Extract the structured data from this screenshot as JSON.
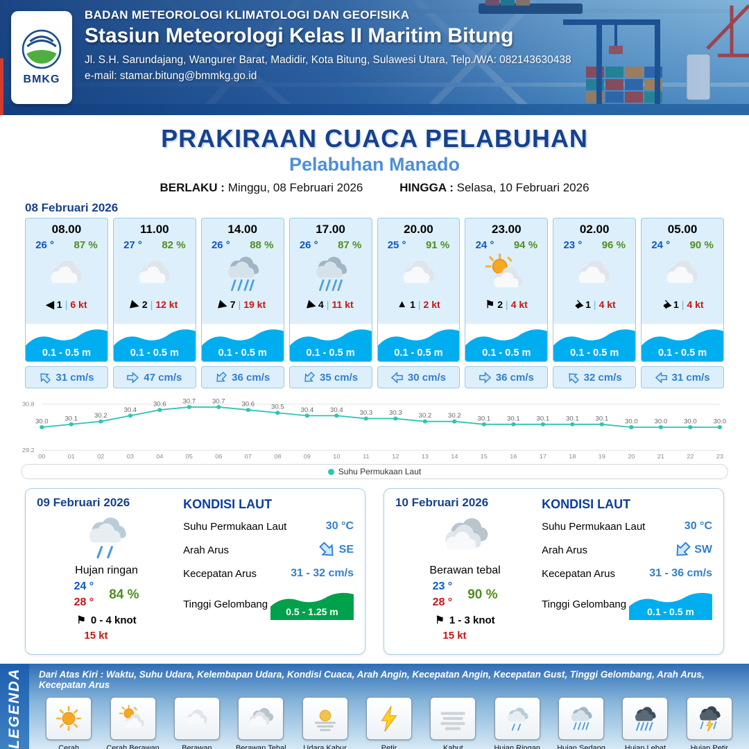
{
  "header": {
    "org": "BADAN METEOROLOGI KLIMATOLOGI DAN GEOFISIKA",
    "station": "Stasiun Meteorologi Kelas II Maritim Bitung",
    "address": "Jl. S.H. Sarundajang, Wangurer Barat, Madidir, Kota Bitung, Sulawesi Utara, Telp./WA: 082143630438",
    "email": "e-mail: stamar.bitung@bmmkg.go.id",
    "logo_text": "BMKG"
  },
  "title": {
    "main": "PRAKIRAAN CUACA PELABUHAN",
    "sub": "Pelabuhan Manado",
    "valid_from_label": "BERLAKU :",
    "valid_from": "Minggu, 08 Februari 2026",
    "valid_to_label": "HINGGA :",
    "valid_to": "Selasa, 10 Februari 2026"
  },
  "forecast": {
    "date": "08 Februari 2026",
    "cards": [
      {
        "time": "08.00",
        "temp": "26 °",
        "rh": "87 %",
        "icon": "berawan",
        "wind_glyph": "◀",
        "wind_rot": 0,
        "wind_val": "1",
        "wind_speed": "6 kt",
        "wave": "0.1 - 0.5 m",
        "current": "31 cm/s",
        "current_rot": -45
      },
      {
        "time": "11.00",
        "temp": "27 °",
        "rh": "82 %",
        "icon": "berawan",
        "wind_glyph": "▶",
        "wind_rot": 15,
        "wind_val": "2",
        "wind_speed": "12 kt",
        "wave": "0.1 - 0.5 m",
        "current": "47 cm/s",
        "current_rot": 90
      },
      {
        "time": "14.00",
        "temp": "26 °",
        "rh": "88 %",
        "icon": "hujan-sedang",
        "wind_glyph": "▶",
        "wind_rot": 15,
        "wind_val": "7",
        "wind_speed": "19 kt",
        "wave": "0.1 - 0.5 m",
        "current": "36 cm/s",
        "current_rot": 225
      },
      {
        "time": "17.00",
        "temp": "26 °",
        "rh": "87 %",
        "icon": "hujan-sedang",
        "wind_glyph": "▶",
        "wind_rot": 15,
        "wind_val": "4",
        "wind_speed": "11 kt",
        "wave": "0.1 - 0.5 m",
        "current": "35 cm/s",
        "current_rot": 225
      },
      {
        "time": "20.00",
        "temp": "25 °",
        "rh": "91 %",
        "icon": "berawan",
        "wind_glyph": "▲",
        "wind_rot": 0,
        "wind_val": "1",
        "wind_speed": "2 kt",
        "wave": "0.1 - 0.5 m",
        "current": "30 cm/s",
        "current_rot": 270
      },
      {
        "time": "23.00",
        "temp": "24 °",
        "rh": "94 %",
        "icon": "cerah-berawan",
        "wind_glyph": "⚑",
        "wind_rot": 0,
        "wind_val": "2",
        "wind_speed": "4 kt",
        "wave": "0.1 - 0.5 m",
        "current": "36 cm/s",
        "current_rot": 90
      },
      {
        "time": "02.00",
        "temp": "23 °",
        "rh": "96 %",
        "icon": "berawan",
        "wind_glyph": "⚑",
        "wind_rot": 135,
        "wind_val": "1",
        "wind_speed": "4 kt",
        "wave": "0.1 - 0.5 m",
        "current": "32 cm/s",
        "current_rot": -45
      },
      {
        "time": "05.00",
        "temp": "24 °",
        "rh": "90 %",
        "icon": "berawan",
        "wind_glyph": "⚑",
        "wind_rot": 135,
        "wind_val": "1",
        "wind_speed": "4 kt",
        "wave": "0.1 - 0.5 m",
        "current": "31 cm/s",
        "current_rot": 270
      }
    ]
  },
  "chart_data": {
    "type": "line",
    "title": "",
    "legend": "Suhu Permukaan Laut",
    "legend_position": "bottom",
    "line_color": "#2fc5b5",
    "x": [
      "00",
      "01",
      "02",
      "03",
      "04",
      "05",
      "06",
      "07",
      "08",
      "09",
      "10",
      "11",
      "12",
      "13",
      "14",
      "15",
      "16",
      "17",
      "18",
      "19",
      "20",
      "21",
      "22",
      "23"
    ],
    "values": [
      30.0,
      30.1,
      30.2,
      30.4,
      30.6,
      30.7,
      30.7,
      30.6,
      30.5,
      30.4,
      30.4,
      30.3,
      30.3,
      30.2,
      30.2,
      30.1,
      30.1,
      30.1,
      30.1,
      30.1,
      30.0,
      30.0,
      30.0,
      30.0
    ],
    "ylim": [
      29.2,
      30.8
    ],
    "yticks": [
      29.2,
      30.8
    ],
    "grid": true
  },
  "daily": [
    {
      "date": "09 Februari 2026",
      "icon": "hujan-ringan",
      "condition": "Hujan ringan",
      "temp_min": "24 °",
      "temp_max": "28 °",
      "rh": "84 %",
      "wind_glyph": "⚑",
      "wind": "0 - 4 knot",
      "gust": "15 kt",
      "sea": {
        "heading": "KONDISI LAUT",
        "sst_label": "Suhu Permukaan Laut",
        "sst": "30 °C",
        "dir_label": "Arah Arus",
        "dir": "SE",
        "dir_rot": 135,
        "speed_label": "Kecepatan Arus",
        "speed": "31 - 32 cm/s",
        "wave_label": "Tinggi Gelombang",
        "wave": "0.5 - 1.25 m",
        "wave_color": "#00a14b"
      }
    },
    {
      "date": "10 Februari 2026",
      "icon": "berawan-tebal",
      "condition": "Berawan tebal",
      "temp_min": "23 °",
      "temp_max": "28 °",
      "rh": "90 %",
      "wind_glyph": "⚑",
      "wind": "1 - 3 knot",
      "gust": "15 kt",
      "sea": {
        "heading": "KONDISI LAUT",
        "sst_label": "Suhu Permukaan Laut",
        "sst": "30 °C",
        "dir_label": "Arah Arus",
        "dir": "SW",
        "dir_rot": 225,
        "speed_label": "Kecepatan Arus",
        "speed": "31 - 36 cm/s",
        "wave_label": "Tinggi Gelombang",
        "wave": "0.1 - 0.5 m",
        "wave_color": "#00aeef"
      }
    }
  ],
  "legend": {
    "title": "LEGENDA",
    "note": "Dari Atas Kiri : Waktu, Suhu Udara, Kelembapan Udara, Kondisi Cuaca, Arah Angin, Kecepatan Angin, Kecepatan Gust, Tinggi Gelombang, Arah Arus, Kecepatan Arus",
    "items": [
      {
        "icon": "cerah",
        "label": "Cerah"
      },
      {
        "icon": "cerah-berawan",
        "label": "Cerah Berawan"
      },
      {
        "icon": "berawan",
        "label": "Berawan"
      },
      {
        "icon": "berawan-tebal",
        "label": "Berawan Tebal"
      },
      {
        "icon": "udara-kabur",
        "label": "Udara Kabur"
      },
      {
        "icon": "petir",
        "label": "Petir"
      },
      {
        "icon": "kabut",
        "label": "Kabut"
      },
      {
        "icon": "hujan-ringan",
        "label": "Hujan Ringan"
      },
      {
        "icon": "hujan-sedang",
        "label": "Hujan Sedang"
      },
      {
        "icon": "hujan-lebat",
        "label": "Hujan Lebat"
      },
      {
        "icon": "hujan-petir",
        "label": "Hujan Petir"
      }
    ]
  },
  "colors": {
    "title": "#16418f",
    "subtitle": "#4d8fd6",
    "temperature": "#0a58c8",
    "humidity": "#4e8f1f",
    "wind_speed": "#c81414",
    "wave_band": "#00aeef",
    "current": "#2f7fd0",
    "chart_line": "#2fc5b5"
  }
}
